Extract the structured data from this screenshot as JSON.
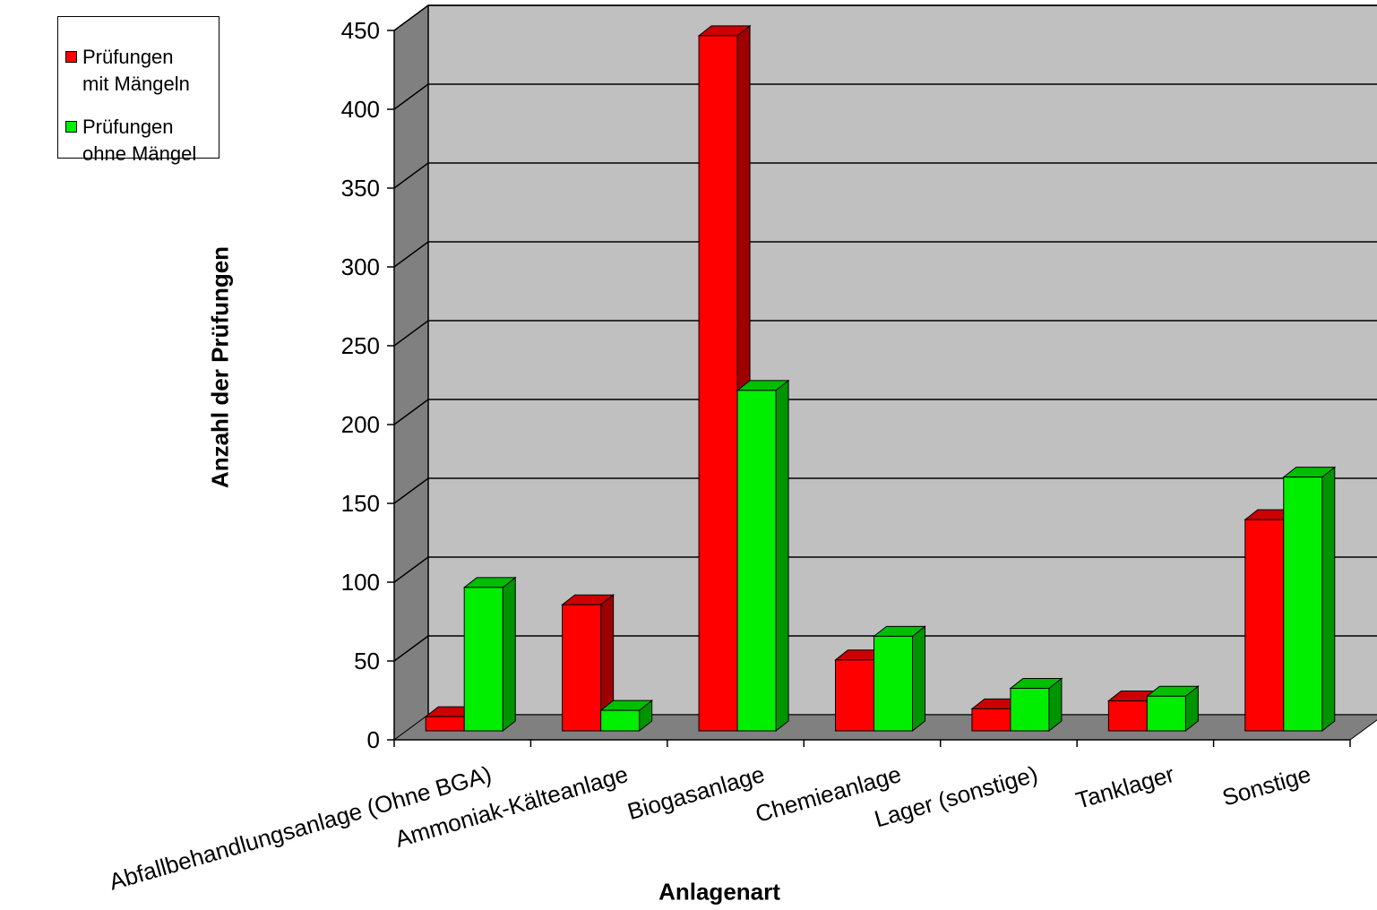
{
  "chart_data": {
    "type": "bar",
    "title": "",
    "xlabel": "Anlagenart",
    "ylabel": "Anzahl der Prüfungen",
    "categories": [
      "Abfallbehandlungsanlage (Ohne BGA)",
      "Ammoniak-Kälteanlage",
      "Biogasanlage",
      "Chemieanlage",
      "Lager (sonstige)",
      "Tanklager",
      "Sonstige"
    ],
    "series": [
      {
        "name": "Prüfungen mit Mängeln",
        "legend_label": "Prüfungen\nmit Mängeln",
        "color": "#ff0000",
        "values": [
          9,
          80,
          441,
          45,
          14,
          19,
          134
        ]
      },
      {
        "name": "Prüfungen ohne Mängel",
        "legend_label": "Prüfungen\nohne Mängel",
        "color": "#00ee00",
        "values": [
          91,
          13,
          216,
          60,
          27,
          22,
          161
        ]
      }
    ],
    "ylim": [
      0,
      450
    ],
    "yticks": [
      0,
      50,
      100,
      150,
      200,
      250,
      300,
      350,
      400,
      450
    ],
    "grid": true,
    "legend_position": "top-left",
    "style": "3d-clustered-column",
    "colors": {
      "wall": "#c0c0c0",
      "side_wall": "#808080",
      "floor": "#808080"
    }
  }
}
